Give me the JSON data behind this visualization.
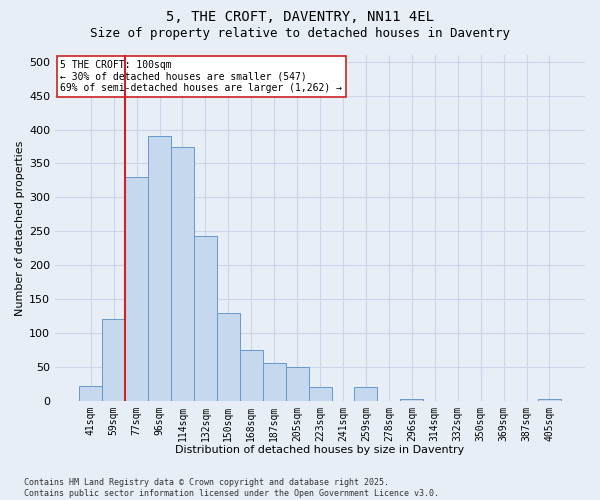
{
  "title": "5, THE CROFT, DAVENTRY, NN11 4EL",
  "subtitle": "Size of property relative to detached houses in Daventry",
  "xlabel": "Distribution of detached houses by size in Daventry",
  "ylabel": "Number of detached properties",
  "categories": [
    "41sqm",
    "59sqm",
    "77sqm",
    "96sqm",
    "114sqm",
    "132sqm",
    "150sqm",
    "168sqm",
    "187sqm",
    "205sqm",
    "223sqm",
    "241sqm",
    "259sqm",
    "278sqm",
    "296sqm",
    "314sqm",
    "332sqm",
    "350sqm",
    "369sqm",
    "387sqm",
    "405sqm"
  ],
  "values": [
    22,
    120,
    330,
    390,
    375,
    243,
    130,
    75,
    55,
    50,
    20,
    0,
    20,
    0,
    3,
    0,
    0,
    0,
    0,
    0,
    2
  ],
  "bar_color": "#c5d8ed",
  "bar_edge_color": "#6699cc",
  "grid_color": "#cdd6e6",
  "background_color": "#e8eef6",
  "vline_color": "#cc2222",
  "vline_bar_index": 2,
  "annotation_line1": "5 THE CROFT: 100sqm",
  "annotation_line2": "← 30% of detached houses are smaller (547)",
  "annotation_line3": "69% of semi-detached houses are larger (1,262) →",
  "footer_text": "Contains HM Land Registry data © Crown copyright and database right 2025.\nContains public sector information licensed under the Open Government Licence v3.0.",
  "ylim": [
    0,
    510
  ],
  "yticks": [
    0,
    50,
    100,
    150,
    200,
    250,
    300,
    350,
    400,
    450,
    500
  ],
  "title_fontsize": 10,
  "subtitle_fontsize": 9,
  "axis_label_fontsize": 8,
  "tick_fontsize": 7,
  "annotation_fontsize": 7,
  "footer_fontsize": 6
}
